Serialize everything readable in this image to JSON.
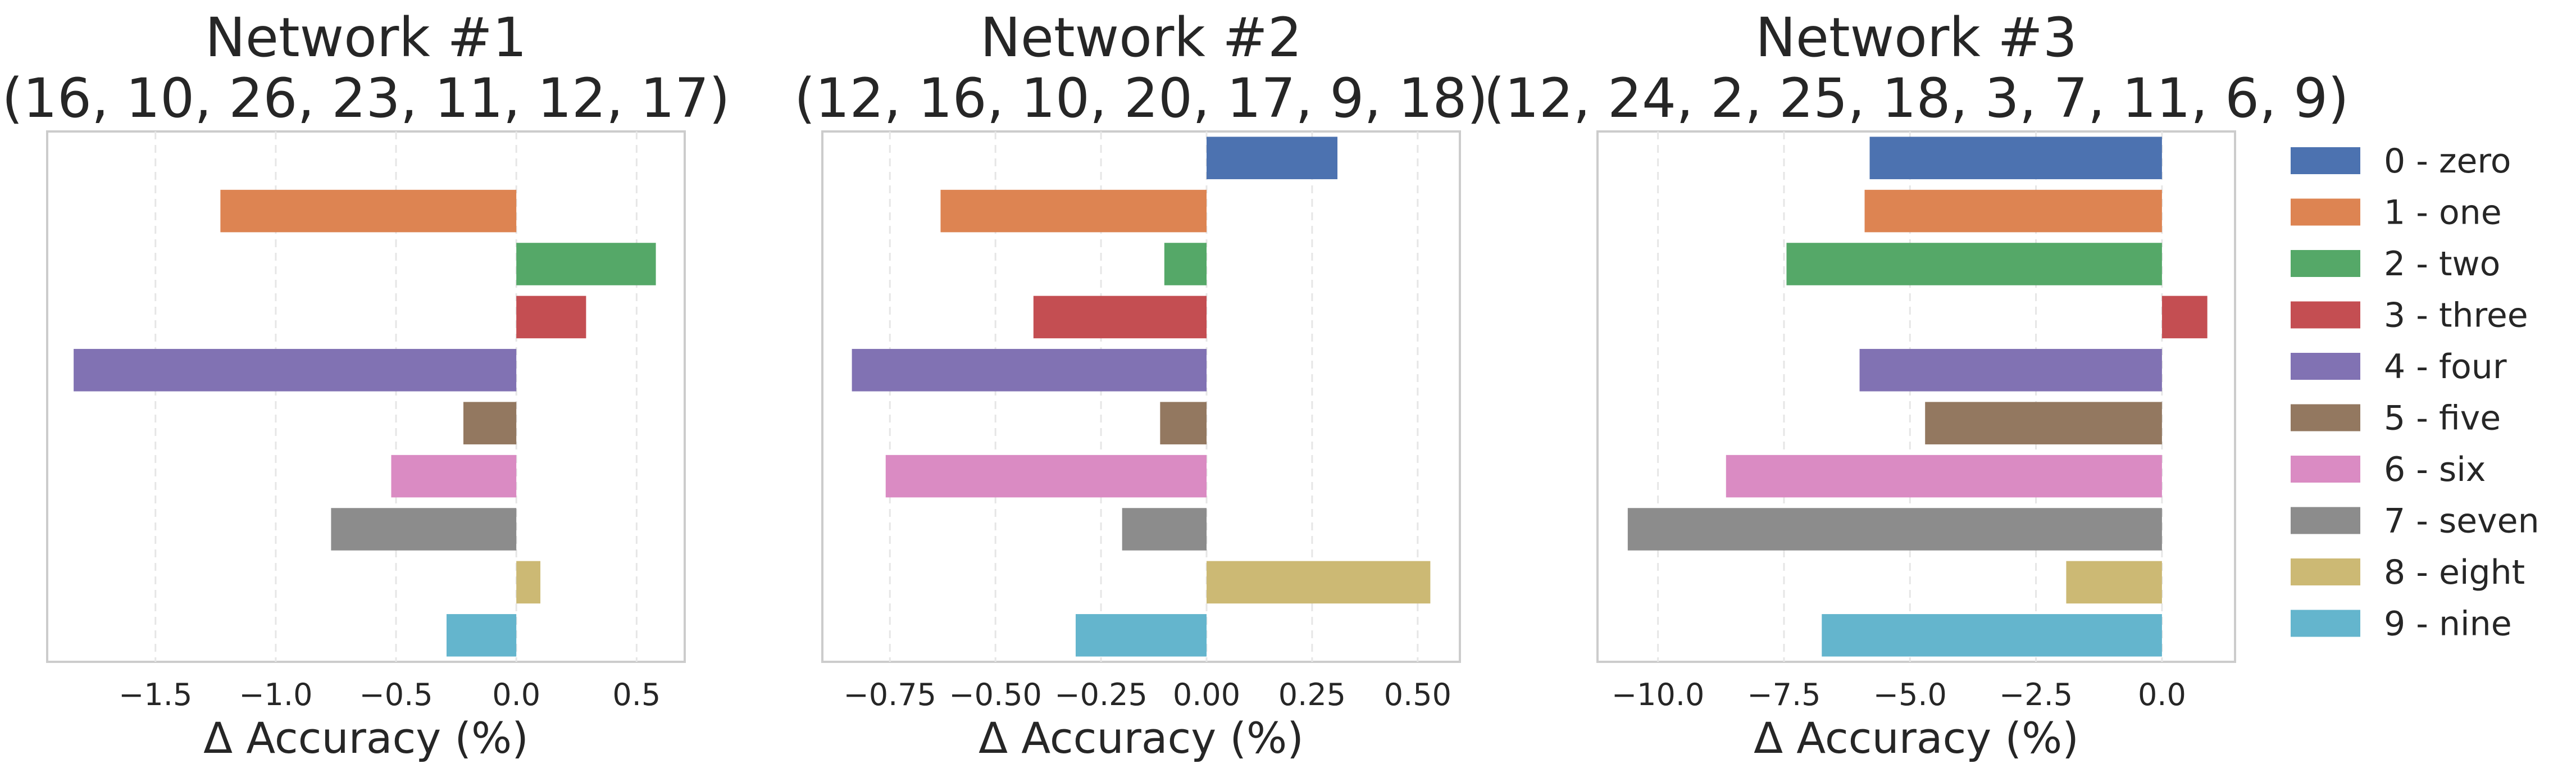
{
  "figure": {
    "xlabel": "Δ Accuracy (%)"
  },
  "colors": [
    "#4c72b0",
    "#dd8452",
    "#55a868",
    "#c44e52",
    "#8172b3",
    "#937860",
    "#da8bc3",
    "#8c8c8c",
    "#ccb974",
    "#64b5cd"
  ],
  "legend": {
    "entries": [
      "0 - zero",
      "1 - one",
      "2 - two",
      "3 - three",
      "4 - four",
      "5 - five",
      "6 - six",
      "7 - seven",
      "8 - eight",
      "9 - nine"
    ]
  },
  "chart_data": [
    {
      "type": "bar",
      "orientation": "horizontal",
      "title_line1": "Network #1",
      "title_line2": "(16, 10, 26, 23, 11, 12, 17)",
      "xlabel": "Δ Accuracy (%)",
      "categories": [
        "0 - zero",
        "1 - one",
        "2 - two",
        "3 - three",
        "4 - four",
        "5 - five",
        "6 - six",
        "7 - seven",
        "8 - eight",
        "9 - nine"
      ],
      "values": [
        0.0,
        -1.23,
        0.58,
        0.29,
        -1.84,
        -0.22,
        -0.52,
        -0.77,
        0.1,
        -0.29
      ],
      "xlim": [
        -1.95,
        0.7
      ],
      "xticks": [
        -1.5,
        -1.0,
        -0.5,
        0.0,
        0.5
      ],
      "xtick_labels": [
        "−1.5",
        "−1.0",
        "−0.5",
        "0.0",
        "0.5"
      ],
      "grid": "x"
    },
    {
      "type": "bar",
      "orientation": "horizontal",
      "title_line1": "Network #2",
      "title_line2": "(12, 16, 10, 20, 17, 9, 18)",
      "xlabel": "Δ Accuracy (%)",
      "categories": [
        "0 - zero",
        "1 - one",
        "2 - two",
        "3 - three",
        "4 - four",
        "5 - five",
        "6 - six",
        "7 - seven",
        "8 - eight",
        "9 - nine"
      ],
      "values": [
        0.31,
        -0.63,
        -0.1,
        -0.41,
        -0.84,
        -0.11,
        -0.76,
        -0.2,
        0.53,
        -0.31
      ],
      "xlim": [
        -0.91,
        0.6
      ],
      "xticks": [
        -0.75,
        -0.5,
        -0.25,
        0.0,
        0.25,
        0.5
      ],
      "xtick_labels": [
        "−0.75",
        "−0.50",
        "−0.25",
        "0.00",
        "0.25",
        "0.50"
      ],
      "grid": "x"
    },
    {
      "type": "bar",
      "orientation": "horizontal",
      "title_line1": "Network #3",
      "title_line2": "(12, 24, 2, 25, 18, 3, 7, 11, 6, 9)",
      "xlabel": "Δ Accuracy (%)",
      "categories": [
        "0 - zero",
        "1 - one",
        "2 - two",
        "3 - three",
        "4 - four",
        "5 - five",
        "6 - six",
        "7 - seven",
        "8 - eight",
        "9 - nine"
      ],
      "values": [
        -5.8,
        -5.9,
        -7.45,
        0.9,
        -6.0,
        -4.7,
        -8.65,
        -10.6,
        -1.9,
        -6.75
      ],
      "xlim": [
        -11.2,
        1.45
      ],
      "xticks": [
        -10.0,
        -7.5,
        -5.0,
        -2.5,
        0.0
      ],
      "xtick_labels": [
        "−10.0",
        "−7.5",
        "−5.0",
        "−2.5",
        "0.0"
      ],
      "grid": "x"
    }
  ]
}
